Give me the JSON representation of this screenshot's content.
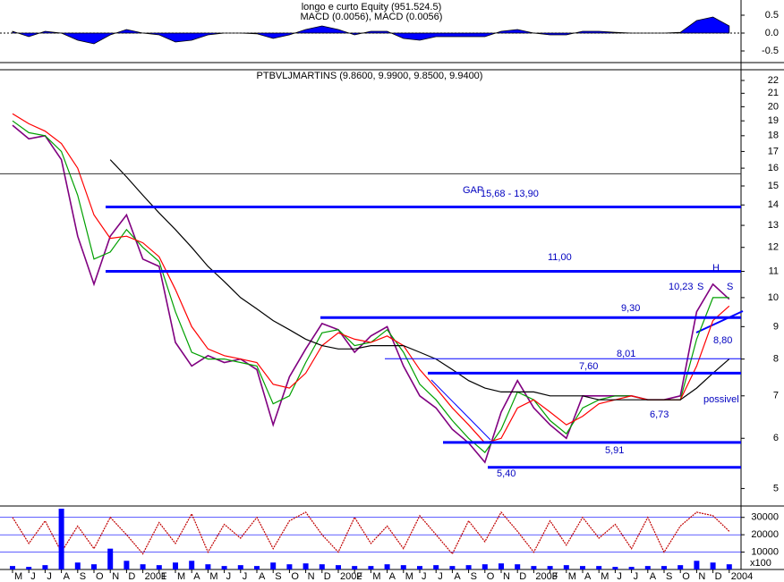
{
  "chart_data": [
    {
      "type": "area",
      "title": "longo e curto Equity (951.524.5)",
      "subtitle": "MACD (0.0056), MACD (0.0056)",
      "color": "#0000ff",
      "ylim": [
        -0.75,
        0.9
      ],
      "yticks": [
        0.5,
        {
          "value": 0,
          "label": "0.0"
        },
        -0.5
      ],
      "values": [
        0.05,
        -0.1,
        0.05,
        0.0,
        -0.2,
        -0.3,
        -0.05,
        0.1,
        0.0,
        -0.05,
        -0.25,
        -0.2,
        -0.05,
        0.0,
        0.0,
        -0.02,
        -0.15,
        -0.05,
        0.1,
        0.2,
        0.1,
        -0.05,
        0.05,
        0.05,
        -0.15,
        -0.2,
        -0.1,
        -0.1,
        -0.1,
        -0.1,
        0.05,
        0.1,
        0.0,
        -0.05,
        -0.05,
        0.05,
        0.05,
        0.02,
        0.0,
        0.0,
        0.0,
        0.02,
        0.35,
        0.45,
        0.2
      ]
    },
    {
      "type": "line",
      "title": "PTBVLJMARTINS (9.8600, 9.9900, 9.8500, 9.9400)",
      "log_scale": true,
      "ylim": [
        4.8,
        22.8
      ],
      "yticks": [
        22,
        21,
        20,
        19,
        18,
        17,
        16,
        15,
        14,
        13,
        12,
        11,
        10,
        9,
        8,
        7,
        6,
        5
      ],
      "series": [
        {
          "color": "#800080",
          "values": [
            18.7,
            17.8,
            18.0,
            16.5,
            12.5,
            10.5,
            12.5,
            13.5,
            11.5,
            11.2,
            8.5,
            7.8,
            8.1,
            7.9,
            8.0,
            7.7,
            6.3,
            7.5,
            8.3,
            9.1,
            8.9,
            8.2,
            8.7,
            9.0,
            7.8,
            7.0,
            6.7,
            6.2,
            5.9,
            5.5,
            6.6,
            7.4,
            6.7,
            6.3,
            6.0,
            7.0,
            7.0,
            7.0,
            7.0,
            6.9,
            6.9,
            7.0,
            9.5,
            10.5,
            9.94
          ]
        },
        {
          "color": "#00a000",
          "values": [
            19.0,
            18.2,
            18.0,
            17.0,
            14.5,
            11.5,
            11.8,
            12.8,
            12.0,
            11.4,
            9.5,
            8.2,
            8.0,
            8.0,
            7.9,
            7.8,
            6.8,
            7.0,
            7.9,
            8.8,
            8.9,
            8.4,
            8.5,
            8.9,
            8.2,
            7.3,
            6.9,
            6.4,
            6.0,
            5.7,
            6.2,
            7.1,
            6.9,
            6.4,
            6.1,
            6.7,
            6.9,
            7.0,
            7.0,
            6.9,
            6.9,
            6.9,
            8.6,
            10.0,
            10.0
          ]
        },
        {
          "color": "#ff0000",
          "values": [
            19.5,
            18.8,
            18.3,
            17.5,
            16.0,
            13.5,
            12.4,
            12.5,
            12.2,
            11.6,
            10.3,
            9.0,
            8.3,
            8.1,
            8.0,
            7.9,
            7.3,
            7.2,
            7.6,
            8.4,
            8.8,
            8.6,
            8.5,
            8.7,
            8.4,
            7.7,
            7.2,
            6.7,
            6.3,
            5.9,
            6.0,
            6.7,
            6.9,
            6.6,
            6.3,
            6.5,
            6.8,
            6.9,
            7.0,
            6.9,
            6.9,
            6.9,
            7.8,
            9.2,
            9.7
          ]
        },
        {
          "color": "#000000",
          "values": [
            null,
            null,
            null,
            null,
            null,
            null,
            16.5,
            15.5,
            14.5,
            13.6,
            12.8,
            12.0,
            11.2,
            10.6,
            10.0,
            9.6,
            9.2,
            8.9,
            8.6,
            8.4,
            8.3,
            8.3,
            8.4,
            8.4,
            8.4,
            8.2,
            8.0,
            7.7,
            7.4,
            7.2,
            7.1,
            7.1,
            7.1,
            7.0,
            7.0,
            7.0,
            6.9,
            6.9,
            6.9,
            6.9,
            6.9,
            6.9,
            7.2,
            7.6,
            8.0
          ]
        }
      ],
      "levels": [
        15.68,
        13.9,
        11.0,
        9.3,
        8.01,
        7.6,
        5.91,
        5.4
      ],
      "level_color": "#0000ff",
      "annotations": [
        "GAP",
        "15,68 - 13,90",
        "11,00",
        "10,23",
        "S",
        "H",
        "S",
        "9,30",
        "8,80",
        "8,01",
        "7,60",
        "6,73",
        "possivel",
        "5,91",
        "5,40"
      ]
    },
    {
      "type": "line",
      "ylim": [
        0,
        35000
      ],
      "yticks": [
        30000,
        20000,
        10000
      ],
      "grid": true,
      "unit_label": "x100",
      "categories": [
        "M",
        "J",
        "J",
        "A",
        "S",
        "O",
        "N",
        "D",
        "2001",
        "F",
        "M",
        "A",
        "M",
        "J",
        "J",
        "A",
        "S",
        "O",
        "N",
        "D",
        "2002",
        "F",
        "M",
        "A",
        "M",
        "J",
        "J",
        "A",
        "S",
        "O",
        "N",
        "D",
        "2003",
        "F",
        "M",
        "A",
        "M",
        "J",
        "J",
        "A",
        "S",
        "O",
        "N",
        "D",
        "2004"
      ],
      "series": [
        {
          "color": "#c00000",
          "values": [
            30000,
            15000,
            28000,
            10000,
            25000,
            12000,
            30000,
            20000,
            9000,
            27000,
            15000,
            32000,
            10000,
            26000,
            18000,
            30000,
            12000,
            28000,
            33000,
            20000,
            10000,
            30000,
            15000,
            25000,
            12000,
            31000,
            20000,
            9000,
            28000,
            16000,
            33000,
            22000,
            10000,
            28000,
            14000,
            30000,
            18000,
            26000,
            12000,
            30000,
            10000,
            25000,
            33000,
            31000,
            22000
          ]
        },
        {
          "type": "bar",
          "color": "#0000ff",
          "values": [
            2000,
            1500,
            2500,
            35000,
            4000,
            3000,
            12000,
            5000,
            3000,
            2500,
            4000,
            5000,
            3000,
            2000,
            2500,
            2000,
            4000,
            3000,
            3500,
            3000,
            2500,
            2000,
            2000,
            3000,
            2500,
            2000,
            2500,
            2000,
            2500,
            3000,
            3500,
            3000,
            2000,
            2000,
            2500,
            2000,
            2000,
            1500,
            1500,
            2000,
            2000,
            2500,
            5000,
            4000,
            3000
          ]
        }
      ]
    }
  ]
}
